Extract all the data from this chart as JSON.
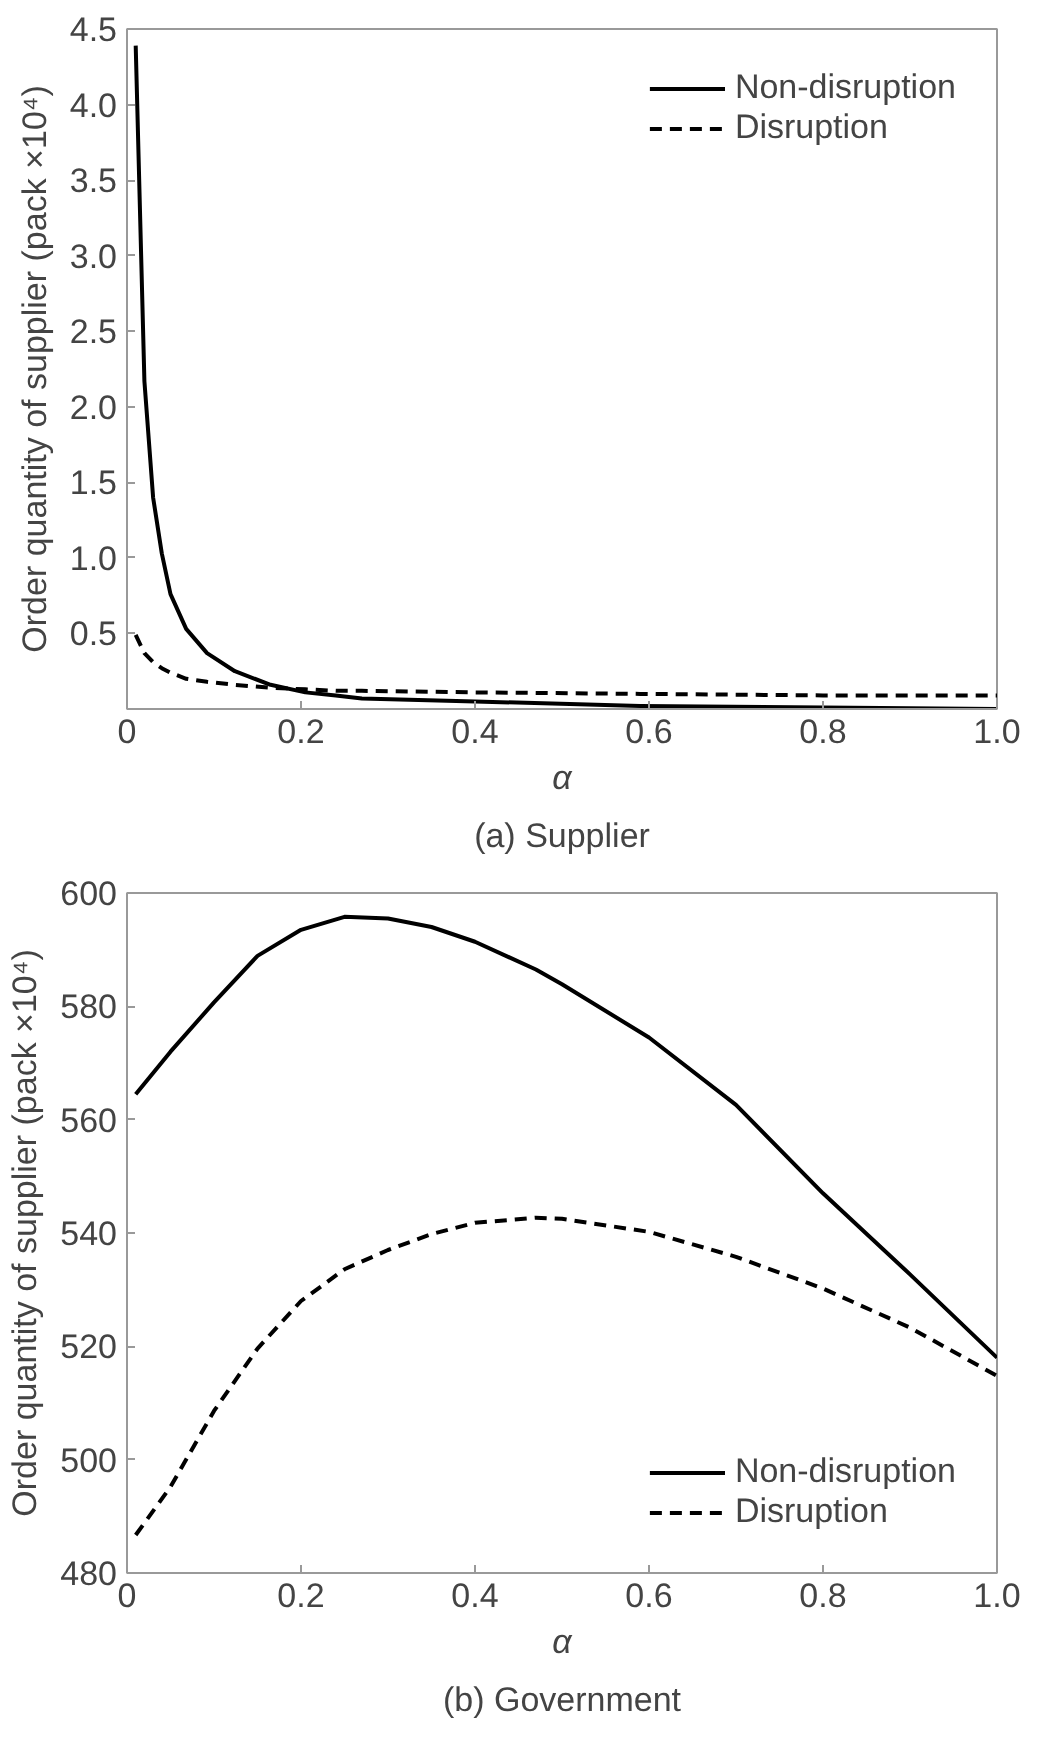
{
  "chart_data": [
    {
      "type": "line",
      "title": "(a) Supplier",
      "xlabel": "α",
      "ylabel": "Order quantity of supplier (pack ×10⁴)",
      "x": [
        0.01,
        0.02,
        0.03,
        0.04,
        0.05,
        0.068,
        0.092,
        0.124,
        0.165,
        0.205,
        0.24,
        0.27,
        0.4,
        0.59,
        0.8,
        1.0
      ],
      "series": [
        {
          "name": "Non-disruption",
          "color": "#000000",
          "line_style": "solid",
          "values": [
            4.39,
            2.17,
            1.4,
            1.03,
            0.76,
            0.53,
            0.37,
            0.25,
            0.16,
            0.11,
            0.09,
            0.07,
            0.05,
            0.02,
            0.01,
            0.0
          ]
        },
        {
          "name": "Disruption",
          "color": "#000000",
          "line_style": "dashed",
          "values": [
            0.49,
            0.37,
            0.31,
            0.27,
            0.24,
            0.2,
            0.18,
            0.16,
            0.14,
            0.13,
            0.12,
            0.12,
            0.11,
            0.1,
            0.09,
            0.09
          ]
        }
      ],
      "xlim": [
        0,
        1
      ],
      "ylim": [
        0,
        4.5
      ],
      "xticks": [
        0,
        0.2,
        0.4,
        0.6,
        0.8,
        {
          "value": 1,
          "label": "1.0"
        }
      ],
      "yticks": [
        0.5,
        {
          "value": 1,
          "label": "1.0"
        },
        1.5,
        {
          "value": 2,
          "label": "2.0"
        },
        2.5,
        {
          "value": 3,
          "label": "3.0"
        },
        3.5,
        {
          "value": 4,
          "label": "4.0"
        },
        4.5
      ],
      "legend": "top right",
      "grid": false
    },
    {
      "type": "line",
      "title": "(b) Government",
      "xlabel": "α",
      "ylabel": "Order quantity of supplier (pack ×10⁴)",
      "x": [
        0.01,
        0.05,
        0.1,
        0.15,
        0.2,
        0.25,
        0.3,
        0.35,
        0.4,
        0.47,
        0.5,
        0.6,
        0.7,
        0.8,
        0.9,
        1.0
      ],
      "series": [
        {
          "name": "Non-disruption",
          "color": "#000000",
          "line_style": "solid",
          "values": [
            564.5,
            572,
            580.7,
            588.9,
            593.5,
            595.8,
            595.5,
            594,
            591.4,
            586.5,
            583.9,
            574.5,
            562.6,
            547,
            532.7,
            518
          ]
        },
        {
          "name": "Disruption",
          "color": "#000000",
          "line_style": "dashed",
          "values": [
            486.7,
            495.2,
            508.6,
            519.6,
            528,
            533.6,
            537,
            539.8,
            541.8,
            542.7,
            542.5,
            540.2,
            535.8,
            530.2,
            523.3,
            514.8
          ]
        }
      ],
      "xlim": [
        0,
        1
      ],
      "ylim": [
        480,
        600
      ],
      "xticks": [
        0,
        0.2,
        0.4,
        0.6,
        0.8,
        {
          "value": 1,
          "label": "1.0"
        }
      ],
      "yticks": [
        480,
        500,
        520,
        540,
        560,
        580,
        600
      ],
      "legend": "bottom right",
      "grid": false
    }
  ]
}
